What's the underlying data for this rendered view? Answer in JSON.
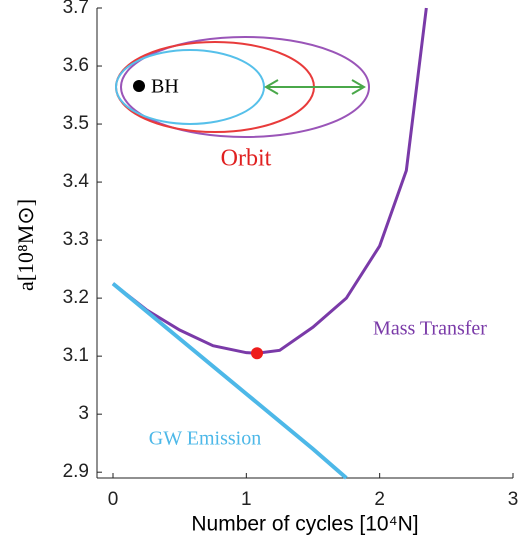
{
  "chart_data": {
    "type": "line",
    "xlabel": "Number of cycles [10⁴N]",
    "ylabel": "a[10⁸M⊙]",
    "xlim": [
      -0.12,
      3
    ],
    "ylim": [
      2.89,
      3.7
    ],
    "xticks": [
      0,
      1,
      2,
      3
    ],
    "yticks": [
      2.9,
      3,
      3.1,
      3.2,
      3.3,
      3.4,
      3.5,
      3.6,
      3.7
    ],
    "series": [
      {
        "name": "Mass Transfer",
        "color": "#7a3aa8",
        "x": [
          0,
          0.25,
          0.5,
          0.75,
          1.0,
          1.08,
          1.25,
          1.5,
          1.75,
          2.0,
          2.2,
          2.35
        ],
        "values": [
          3.225,
          3.18,
          3.145,
          3.118,
          3.106,
          3.105,
          3.11,
          3.15,
          3.2,
          3.29,
          3.42,
          3.7
        ]
      },
      {
        "name": "GW Emission",
        "color": "#4db8e8",
        "x": [
          0,
          0.5,
          1.0,
          1.5,
          1.75
        ],
        "values": [
          3.225,
          3.13,
          3.035,
          2.94,
          2.89
        ]
      }
    ],
    "marker": {
      "x": 1.08,
      "y": 3.105,
      "color": "#ee1c1c"
    },
    "annotations": {
      "orbit": "Orbit",
      "bh": "BH"
    }
  }
}
